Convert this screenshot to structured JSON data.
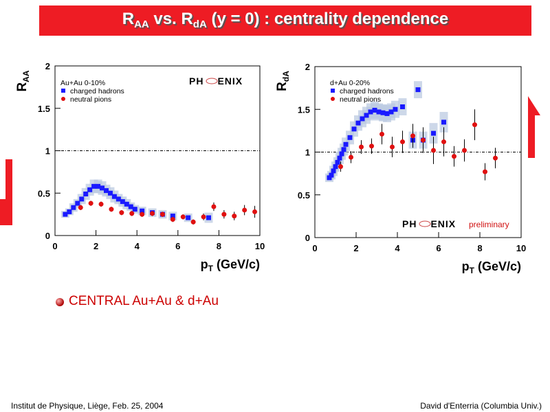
{
  "title": [
    "R",
    "AA",
    " vs. R",
    "dA",
    " (y = 0) : centrality dependence"
  ],
  "bullet": "CENTRAL Au+Au & d+Au",
  "footer": {
    "left": "Institut de Physique, Liège, Feb. 25, 2004",
    "right": "David d'Enterria (Columbia Univ.)"
  },
  "chart_data": [
    {
      "type": "scatter",
      "ylabel": [
        "R",
        "AA"
      ],
      "xlabel": [
        "p",
        "T",
        " (GeV/c)"
      ],
      "legend_title": "Au+Au 0-10%",
      "logo": [
        "PH",
        "ENIX"
      ],
      "xlim": [
        0,
        10
      ],
      "xticks": [
        0,
        2,
        4,
        6,
        8,
        10
      ],
      "ylim": [
        0,
        2
      ],
      "yticks": [
        0,
        0.5,
        1,
        1.5,
        2
      ],
      "reference_line": 1,
      "series": [
        {
          "name": "charged hadrons",
          "color": "#1a1aff",
          "marker": "square",
          "x": [
            0.5,
            0.7,
            0.9,
            1.1,
            1.3,
            1.5,
            1.7,
            1.9,
            2.1,
            2.3,
            2.5,
            2.7,
            2.9,
            3.1,
            3.3,
            3.5,
            3.7,
            3.9,
            4.25,
            4.75,
            5.25,
            5.75,
            6.5,
            7.5
          ],
          "values": [
            0.25,
            0.28,
            0.33,
            0.38,
            0.43,
            0.49,
            0.54,
            0.58,
            0.58,
            0.56,
            0.53,
            0.5,
            0.46,
            0.43,
            0.4,
            0.37,
            0.34,
            0.31,
            0.29,
            0.27,
            0.25,
            0.23,
            0.21,
            0.21
          ],
          "errors": [
            0.04,
            0.04,
            0.05,
            0.05,
            0.06,
            0.07,
            0.07,
            0.08,
            0.08,
            0.08,
            0.07,
            0.07,
            0.07,
            0.06,
            0.06,
            0.06,
            0.05,
            0.05,
            0.05,
            0.05,
            0.05,
            0.05,
            0.05,
            0.06
          ]
        },
        {
          "name": "neutral pions",
          "color": "#e01010",
          "marker": "circle",
          "x": [
            1.25,
            1.75,
            2.25,
            2.75,
            3.25,
            3.75,
            4.25,
            4.75,
            5.25,
            5.75,
            6.25,
            6.75,
            7.25,
            7.75,
            8.25,
            8.75,
            9.25,
            9.75
          ],
          "values": [
            0.33,
            0.38,
            0.37,
            0.31,
            0.27,
            0.26,
            0.25,
            0.26,
            0.25,
            0.19,
            0.22,
            0.16,
            0.22,
            0.34,
            0.25,
            0.23,
            0.3,
            0.28
          ],
          "errors": [
            0.03,
            0.03,
            0.03,
            0.03,
            0.03,
            0.03,
            0.03,
            0.03,
            0.03,
            0.03,
            0.03,
            0.03,
            0.04,
            0.05,
            0.05,
            0.05,
            0.06,
            0.07
          ]
        }
      ]
    },
    {
      "type": "scatter",
      "ylabel": [
        "R",
        "dA"
      ],
      "xlabel": [
        "p",
        "T",
        " (GeV/c)"
      ],
      "legend_title": "d+Au 0-20%",
      "logo": [
        "PH",
        "ENIX"
      ],
      "annotation": "preliminary",
      "xlim": [
        0,
        10
      ],
      "xticks": [
        0,
        2,
        4,
        6,
        8,
        10
      ],
      "ylim": [
        0,
        2
      ],
      "yticks": [
        0,
        0.5,
        1,
        1.5,
        2
      ],
      "reference_line": 1,
      "series": [
        {
          "name": "charged hadrons",
          "color": "#1a1aff",
          "marker": "square",
          "x": [
            0.7,
            0.8,
            0.9,
            1.0,
            1.1,
            1.2,
            1.3,
            1.4,
            1.5,
            1.7,
            1.9,
            2.1,
            2.3,
            2.5,
            2.7,
            2.9,
            3.1,
            3.3,
            3.5,
            3.7,
            3.9,
            4.25,
            4.75,
            5.0,
            5.25,
            5.75,
            6.25
          ],
          "values": [
            0.7,
            0.73,
            0.78,
            0.83,
            0.88,
            0.93,
            0.98,
            1.03,
            1.09,
            1.17,
            1.27,
            1.34,
            1.39,
            1.43,
            1.47,
            1.49,
            1.47,
            1.46,
            1.45,
            1.47,
            1.5,
            1.53,
            1.14,
            1.73,
            1.14,
            1.22,
            1.35
          ],
          "errors": [
            0.05,
            0.05,
            0.06,
            0.06,
            0.06,
            0.07,
            0.07,
            0.07,
            0.08,
            0.08,
            0.09,
            0.09,
            0.1,
            0.1,
            0.1,
            0.1,
            0.1,
            0.1,
            0.1,
            0.1,
            0.1,
            0.1,
            0.1,
            0.1,
            0.1,
            0.12,
            0.12
          ]
        },
        {
          "name": "neutral pions",
          "color": "#e01010",
          "marker": "circle",
          "x": [
            1.25,
            1.75,
            2.25,
            2.75,
            3.25,
            3.75,
            4.25,
            4.75,
            5.25,
            5.75,
            6.25,
            6.75,
            7.25,
            7.75,
            8.25,
            8.75
          ],
          "values": [
            0.83,
            0.94,
            1.06,
            1.07,
            1.21,
            1.06,
            1.12,
            1.19,
            1.14,
            1.02,
            1.12,
            0.95,
            1.02,
            1.32,
            0.77,
            0.93
          ],
          "errors": [
            0.06,
            0.07,
            0.08,
            0.09,
            0.12,
            0.12,
            0.13,
            0.14,
            0.15,
            0.16,
            0.17,
            0.12,
            0.13,
            0.18,
            0.1,
            0.12
          ]
        }
      ]
    }
  ]
}
